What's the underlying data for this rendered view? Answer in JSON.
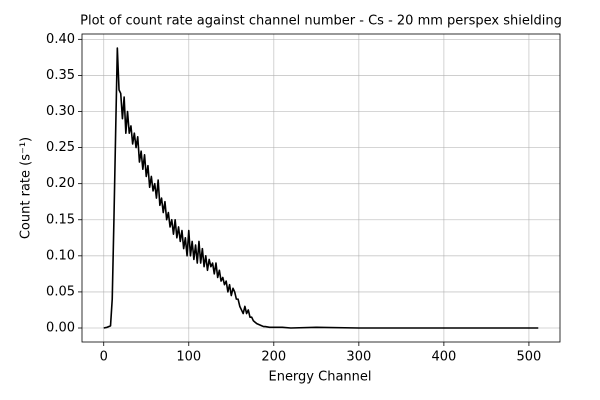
{
  "chart_data": {
    "type": "line",
    "title": "Plot of count rate against channel number - Cs - 20 mm perspex shielding",
    "xlabel": "Energy Channel",
    "ylabel": "Count rate (s⁻¹)",
    "x": [
      0,
      4,
      8,
      10,
      12,
      14,
      16,
      18,
      20,
      22,
      24,
      26,
      28,
      30,
      32,
      34,
      36,
      38,
      40,
      42,
      44,
      46,
      48,
      50,
      52,
      54,
      56,
      58,
      60,
      62,
      64,
      66,
      68,
      70,
      72,
      74,
      76,
      78,
      80,
      82,
      84,
      86,
      88,
      90,
      92,
      94,
      96,
      98,
      100,
      102,
      104,
      106,
      108,
      110,
      112,
      114,
      116,
      118,
      120,
      122,
      124,
      126,
      128,
      130,
      132,
      134,
      136,
      138,
      140,
      142,
      144,
      146,
      148,
      150,
      152,
      154,
      156,
      158,
      160,
      162,
      164,
      166,
      168,
      170,
      172,
      174,
      176,
      178,
      180,
      182,
      184,
      186,
      188,
      190,
      195,
      200,
      210,
      220,
      250,
      300,
      350,
      400,
      450,
      511
    ],
    "values": [
      0,
      0.001,
      0.003,
      0.04,
      0.15,
      0.27,
      0.388,
      0.33,
      0.325,
      0.29,
      0.32,
      0.27,
      0.3,
      0.27,
      0.28,
      0.255,
      0.27,
      0.25,
      0.265,
      0.23,
      0.245,
      0.22,
      0.24,
      0.21,
      0.225,
      0.195,
      0.21,
      0.19,
      0.2,
      0.18,
      0.205,
      0.17,
      0.18,
      0.16,
      0.175,
      0.15,
      0.16,
      0.14,
      0.15,
      0.13,
      0.15,
      0.125,
      0.14,
      0.12,
      0.135,
      0.11,
      0.125,
      0.1,
      0.135,
      0.1,
      0.12,
      0.095,
      0.115,
      0.09,
      0.12,
      0.09,
      0.11,
      0.085,
      0.1,
      0.08,
      0.095,
      0.085,
      0.09,
      0.075,
      0.09,
      0.07,
      0.08,
      0.065,
      0.07,
      0.06,
      0.065,
      0.05,
      0.06,
      0.045,
      0.055,
      0.05,
      0.04,
      0.04,
      0.03,
      0.025,
      0.02,
      0.03,
      0.02,
      0.025,
      0.015,
      0.015,
      0.01,
      0.008,
      0.006,
      0.005,
      0.004,
      0.003,
      0.002,
      0.002,
      0.001,
      0.001,
      0.001,
      0,
      0.001,
      0,
      0,
      0,
      0,
      0
    ],
    "color": "#000000",
    "xlim": [
      -25.55,
      536.55
    ],
    "xticks": [
      0,
      100,
      200,
      300,
      400,
      500
    ],
    "ylim": [
      -0.0194,
      0.4074
    ],
    "yticks": [
      {
        "value": 0,
        "label": "0.00"
      },
      {
        "value": 0.05,
        "label": "0.05"
      },
      {
        "value": 0.1,
        "label": "0.10"
      },
      {
        "value": 0.15,
        "label": "0.15"
      },
      {
        "value": 0.2,
        "label": "0.20"
      },
      {
        "value": 0.25,
        "label": "0.25"
      },
      {
        "value": 0.3,
        "label": "0.30"
      },
      {
        "value": 0.35,
        "label": "0.35"
      },
      {
        "value": 0.4,
        "label": "0.40"
      }
    ],
    "grid": true
  }
}
